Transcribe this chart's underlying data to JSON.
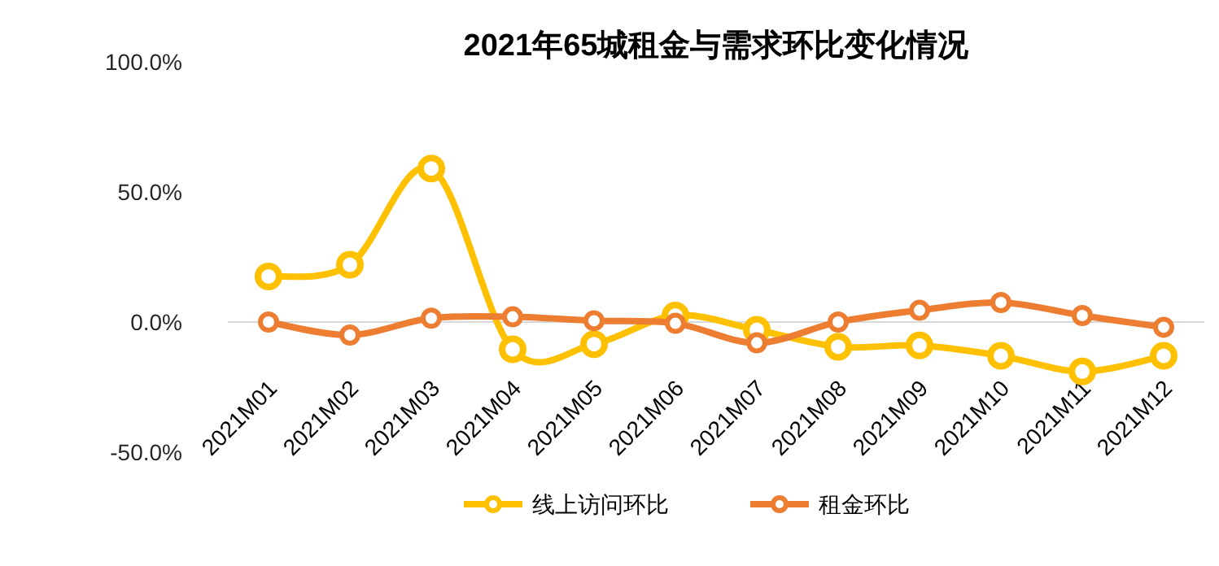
{
  "chart_data": {
    "type": "line",
    "title": "2021年65城租金与需求环比变化情况",
    "categories": [
      "2021M01",
      "2021M02",
      "2021M03",
      "2021M04",
      "2021M05",
      "2021M06",
      "2021M07",
      "2021M08",
      "2021M09",
      "2021M10",
      "2021M11",
      "2021M12"
    ],
    "series": [
      {
        "name": "线上访问环比",
        "color": "#ffc000",
        "values": [
          17.5,
          22,
          59,
          -10.5,
          -8.5,
          2.5,
          -3,
          -9.5,
          -9,
          -13,
          -19,
          -13
        ]
      },
      {
        "name": "租金环比",
        "color": "#ed7d31",
        "values": [
          0,
          -5,
          1.5,
          2,
          0.5,
          -0.5,
          -8,
          0,
          4.5,
          7.5,
          2.5,
          -2
        ]
      }
    ],
    "ylim": [
      -50,
      100
    ],
    "yticks": [
      {
        "value": -50,
        "label": "-50.0%"
      },
      {
        "value": 0,
        "label": "0.0%"
      },
      {
        "value": 50,
        "label": "50.0%"
      },
      {
        "value": 100,
        "label": "100.0%"
      }
    ],
    "grid": false,
    "legend": "bottom",
    "marker": "circle",
    "line_style": "solid"
  }
}
